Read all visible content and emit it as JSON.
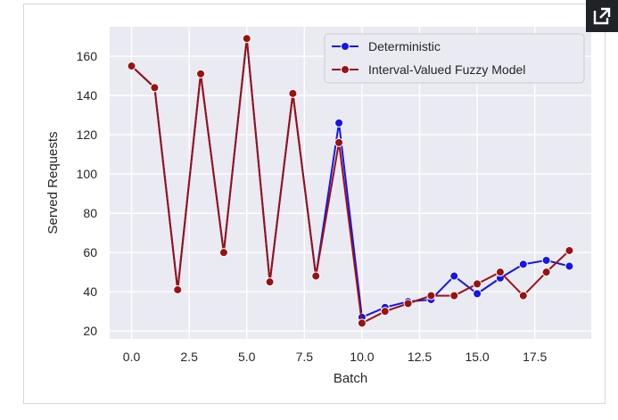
{
  "toolbar": {
    "expand_icon": "external-link-icon"
  },
  "chart_data": {
    "type": "line",
    "xlabel": "Batch",
    "ylabel": "Served Requests",
    "xlim": [
      -0.95,
      19.95
    ],
    "ylim": [
      16,
      175
    ],
    "xticks": [
      "0.0",
      "2.5",
      "5.0",
      "7.5",
      "10.0",
      "12.5",
      "15.0",
      "17.5"
    ],
    "yticks": [
      "20",
      "40",
      "60",
      "80",
      "100",
      "120",
      "140",
      "160"
    ],
    "grid": true,
    "legend_position": "top-right",
    "x": [
      0,
      1,
      2,
      3,
      4,
      5,
      6,
      7,
      8,
      9,
      10,
      11,
      12,
      13,
      14,
      15,
      16,
      17,
      18,
      19
    ],
    "series": [
      {
        "name": "Deterministic",
        "color": "#1414f0",
        "values": [
          155,
          144,
          41,
          151,
          60,
          169,
          45,
          141,
          48,
          126,
          27,
          32,
          35,
          36,
          48,
          39,
          47,
          54,
          56,
          53
        ]
      },
      {
        "name": "Interval-Valued Fuzzy Model",
        "color": "#9b1111",
        "values": [
          155,
          144,
          41,
          151,
          60,
          169,
          45,
          141,
          48,
          116,
          24,
          30,
          34,
          38,
          38,
          44,
          50,
          38,
          50,
          61
        ]
      }
    ]
  }
}
